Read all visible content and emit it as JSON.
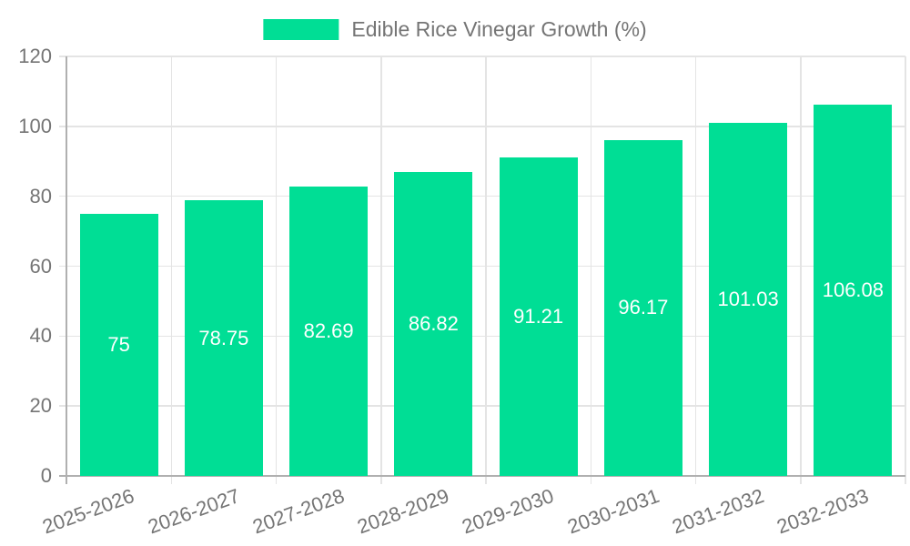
{
  "legend": {
    "label": "Edible Rice Vinegar Growth (%)"
  },
  "chart_data": {
    "type": "bar",
    "categories": [
      "2025-2026",
      "2026-2027",
      "2027-2028",
      "2028-2029",
      "2029-2030",
      "2030-2031",
      "2031-2032",
      "2032-2033"
    ],
    "series": [
      {
        "name": "Edible Rice Vinegar Growth (%)",
        "color": "#00DE95",
        "values": [
          75,
          78.75,
          82.69,
          86.82,
          91.21,
          96.17,
          101.03,
          106.08
        ]
      }
    ],
    "value_labels": [
      "75",
      "78.75",
      "82.69",
      "86.82",
      "91.21",
      "96.17",
      "101.03",
      "106.08"
    ],
    "xlabel": "",
    "ylabel": "",
    "ylim": [
      0,
      120
    ],
    "yticks": [
      0,
      20,
      40,
      60,
      80,
      100,
      120
    ],
    "grid": true,
    "legend_position": "top",
    "x_tick_rotation_deg": -20
  },
  "colors": {
    "bar": "#00DE95",
    "axis_line": "#b0b0b0",
    "grid_line": "#e4e4e4",
    "tick_label": "#757575",
    "legend_text": "#757575",
    "value_label": "#ffffff",
    "background": "#ffffff"
  }
}
